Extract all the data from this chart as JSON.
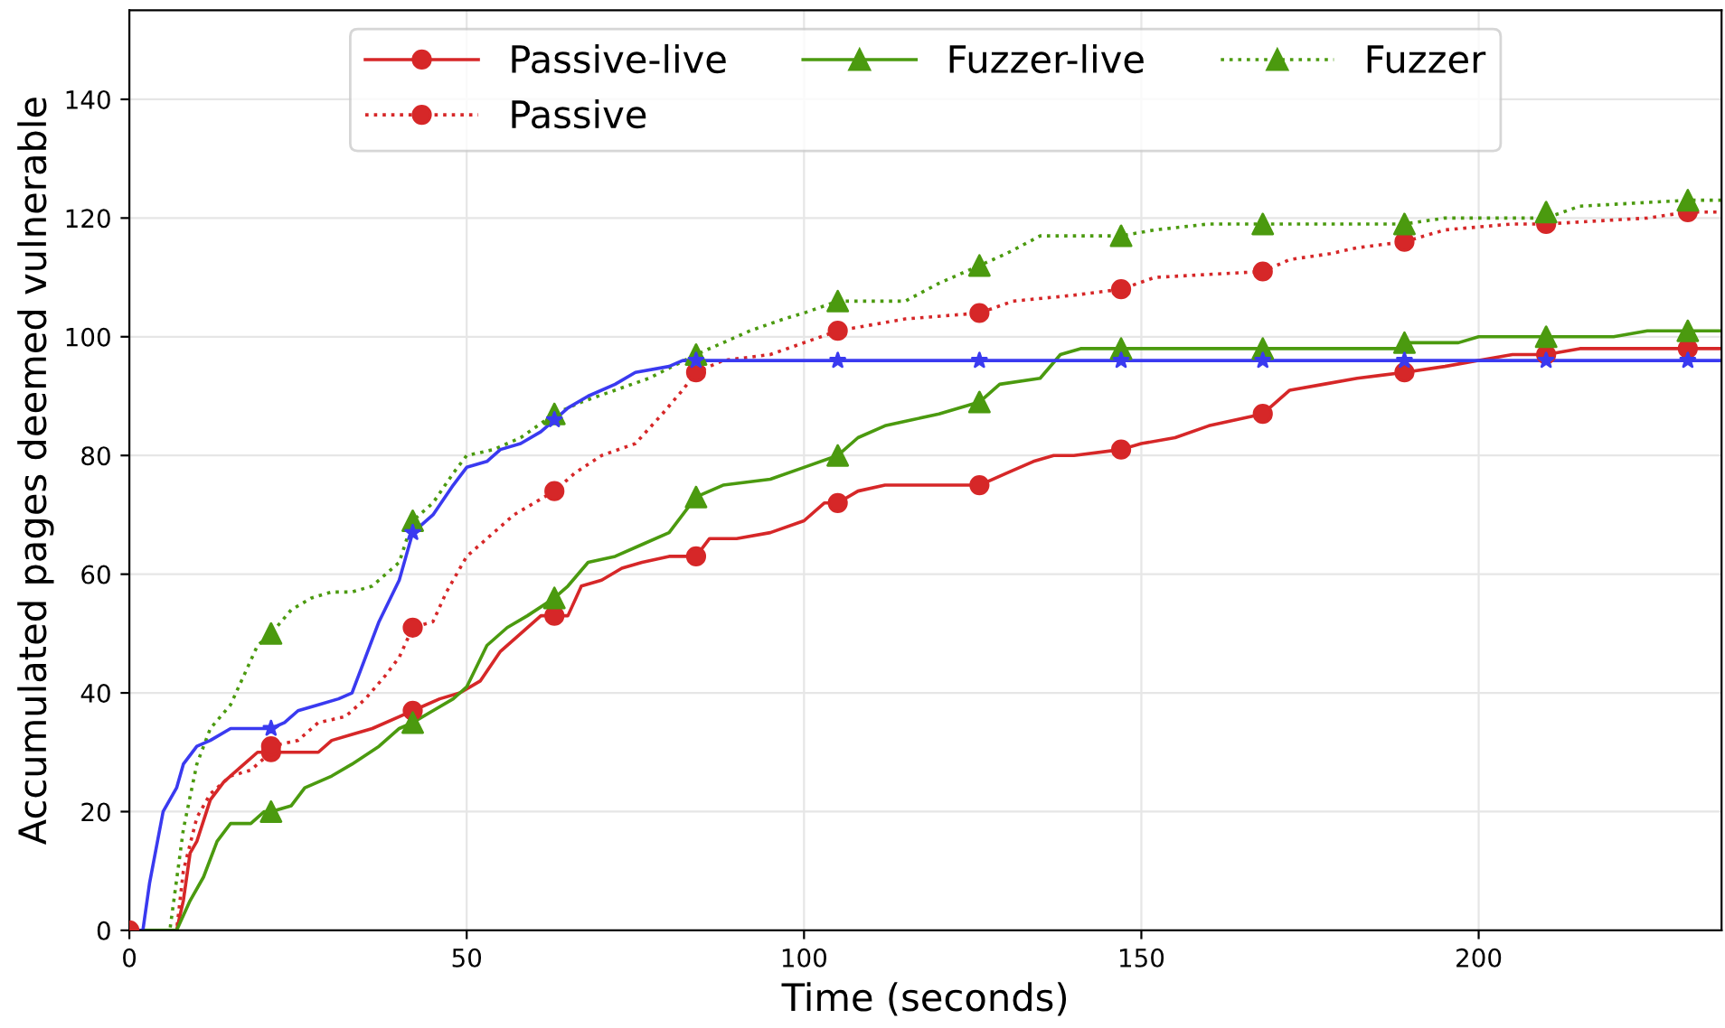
{
  "chart_data": {
    "type": "line",
    "xlabel": "Time (seconds)",
    "ylabel": "Accumulated pages deemed vulnerable",
    "xlim": [
      0,
      236
    ],
    "ylim": [
      0,
      155
    ],
    "xticks": [
      0,
      50,
      100,
      150,
      200
    ],
    "yticks": [
      0,
      20,
      40,
      60,
      80,
      100,
      120,
      140
    ],
    "grid": true,
    "legend": "top",
    "series": [
      {
        "name": "Passive-live",
        "color": "#d62728",
        "line_style": "solid",
        "x": [
          0,
          7,
          8,
          9,
          10,
          12,
          14,
          17,
          19,
          21,
          25,
          28,
          30,
          33,
          36,
          40,
          42,
          46,
          49,
          52,
          55,
          58,
          61,
          63,
          65,
          67,
          70,
          73,
          76,
          80,
          84,
          86,
          90,
          95,
          100,
          103,
          105,
          108,
          112,
          126,
          130,
          134,
          137,
          140,
          147,
          150,
          155,
          160,
          164,
          168,
          172,
          177,
          182,
          189,
          195,
          200,
          205,
          210,
          215,
          231,
          236
        ],
        "values": [
          0,
          0,
          5,
          13,
          15,
          22,
          25,
          28,
          30,
          30,
          30,
          30,
          32,
          33,
          34,
          36,
          37,
          39,
          40,
          42,
          47,
          50,
          53,
          53,
          53,
          58,
          59,
          61,
          62,
          63,
          63,
          66,
          66,
          67,
          69,
          72,
          72,
          74,
          75,
          75,
          77,
          79,
          80,
          80,
          81,
          82,
          83,
          85,
          86,
          87,
          91,
          92,
          93,
          94,
          95,
          96,
          97,
          97,
          98,
          98,
          98
        ]
      },
      {
        "type": "scatter",
        "color": "#d62728",
        "marker": "circle",
        "x": [
          0,
          21,
          42,
          63,
          84,
          105,
          126,
          147,
          168,
          189,
          210,
          231
        ],
        "values": [
          0,
          30,
          37,
          53,
          63,
          72,
          75,
          81,
          87,
          94,
          97,
          98
        ]
      },
      {
        "name": "Passive",
        "color": "#d62728",
        "line_style": "dotted",
        "x": [
          0,
          7,
          8,
          10,
          12,
          15,
          18,
          20,
          21,
          25,
          28,
          32,
          35,
          38,
          40,
          42,
          45,
          47,
          50,
          54,
          57,
          60,
          63,
          66,
          70,
          75,
          79,
          82,
          84,
          88,
          95,
          100,
          105,
          110,
          115,
          126,
          131,
          140,
          147,
          152,
          168,
          172,
          178,
          182,
          189,
          195,
          205,
          210,
          225,
          231,
          236
        ],
        "values": [
          0,
          0,
          10,
          19,
          23,
          26,
          27,
          29,
          31,
          32,
          35,
          36,
          39,
          43,
          46,
          51,
          52,
          57,
          63,
          67,
          70,
          72,
          74,
          77,
          80,
          82,
          87,
          91,
          94,
          96,
          97,
          99,
          101,
          102,
          103,
          104,
          106,
          107,
          108,
          110,
          111,
          113,
          114,
          115,
          116,
          118,
          119,
          119,
          120,
          121,
          121
        ]
      },
      {
        "type": "scatter",
        "color": "#d62728",
        "marker": "circle",
        "x": [
          21,
          42,
          63,
          84,
          105,
          126,
          147,
          168,
          189,
          210,
          231
        ],
        "values": [
          31,
          51,
          74,
          94,
          101,
          104,
          108,
          111,
          116,
          119,
          121
        ]
      },
      {
        "name": "Fuzzer-live",
        "color": "#4b9a0f",
        "line_style": "solid",
        "x": [
          0,
          7,
          9,
          11,
          13,
          15,
          18,
          20,
          21,
          24,
          26,
          30,
          33,
          37,
          40,
          42,
          45,
          48,
          50,
          53,
          56,
          59,
          63,
          65,
          68,
          72,
          76,
          80,
          84,
          88,
          95,
          100,
          105,
          108,
          112,
          116,
          120,
          126,
          129,
          135,
          138,
          141,
          147,
          168,
          188,
          189,
          197,
          200,
          210,
          220,
          225,
          231,
          236
        ],
        "values": [
          0,
          0,
          5,
          9,
          15,
          18,
          18,
          20,
          20,
          21,
          24,
          26,
          28,
          31,
          34,
          35,
          37,
          39,
          41,
          48,
          51,
          53,
          56,
          58,
          62,
          63,
          65,
          67,
          73,
          75,
          76,
          78,
          80,
          83,
          85,
          86,
          87,
          89,
          92,
          93,
          97,
          98,
          98,
          98,
          98,
          99,
          99,
          100,
          100,
          100,
          101,
          101,
          101
        ]
      },
      {
        "type": "scatter",
        "color": "#4b9a0f",
        "marker": "triangle",
        "x": [
          21,
          42,
          63,
          84,
          105,
          126,
          147,
          168,
          189,
          210,
          231
        ],
        "values": [
          20,
          35,
          56,
          73,
          80,
          89,
          98,
          98,
          99,
          100,
          101
        ]
      },
      {
        "name": "Fuzzer",
        "color": "#4b9a0f",
        "line_style": "dotted",
        "x": [
          0,
          6,
          8,
          10,
          12,
          15,
          17,
          19,
          21,
          24,
          27,
          30,
          33,
          36,
          40,
          42,
          45,
          48,
          50,
          54,
          58,
          63,
          67,
          72,
          77,
          84,
          88,
          92,
          97,
          100,
          105,
          115,
          120,
          126,
          130,
          135,
          147,
          152,
          160,
          168,
          189,
          195,
          210,
          215,
          231,
          236
        ],
        "values": [
          0,
          0,
          17,
          28,
          34,
          38,
          43,
          48,
          50,
          54,
          56,
          57,
          57,
          58,
          62,
          69,
          72,
          77,
          80,
          81,
          83,
          87,
          89,
          91,
          93,
          97,
          99,
          101,
          103,
          104,
          106,
          106,
          109,
          112,
          114,
          117,
          117,
          118,
          119,
          119,
          119,
          120,
          120,
          122,
          123,
          123
        ]
      },
      {
        "type": "scatter",
        "color": "#4b9a0f",
        "marker": "triangle",
        "x": [
          21,
          42,
          63,
          84,
          105,
          126,
          147,
          168,
          189,
          210,
          231
        ],
        "values": [
          50,
          69,
          87,
          97,
          106,
          112,
          117,
          119,
          119,
          121,
          123
        ]
      },
      {
        "color": "#3a3af0",
        "line_style": "solid",
        "x": [
          0,
          2,
          3,
          5,
          7,
          8,
          10,
          12,
          15,
          21,
          23,
          25,
          28,
          31,
          33,
          35,
          37,
          40,
          42,
          45,
          48,
          50,
          53,
          55,
          58,
          61,
          63,
          65,
          68,
          72,
          75,
          80,
          82,
          84,
          105,
          126,
          147,
          168,
          189,
          210,
          231,
          236
        ],
        "values": [
          0,
          0,
          8,
          20,
          24,
          28,
          31,
          32,
          34,
          34,
          35,
          37,
          38,
          39,
          40,
          46,
          52,
          59,
          67,
          70,
          75,
          78,
          79,
          81,
          82,
          84,
          86,
          88,
          90,
          92,
          94,
          95,
          96,
          96,
          96,
          96,
          96,
          96,
          96,
          96,
          96,
          96
        ]
      },
      {
        "type": "scatter",
        "color": "#3a3af0",
        "marker": "star",
        "x": [
          21,
          42,
          63,
          84,
          105,
          126,
          147,
          168,
          189,
          210,
          231
        ],
        "values": [
          34,
          67,
          86,
          96,
          96,
          96,
          96,
          96,
          96,
          96,
          96
        ]
      }
    ]
  }
}
